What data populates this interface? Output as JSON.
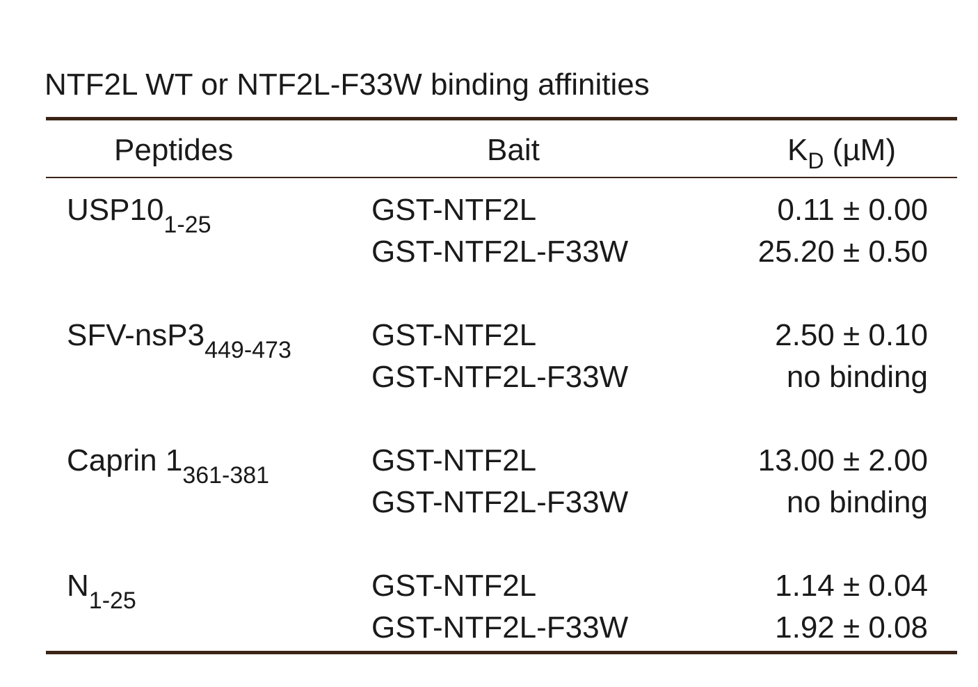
{
  "title": "NTF2L WT or NTF2L-F33W binding affinities",
  "headers": {
    "peptides": "Peptides",
    "bait": "Bait",
    "kd_main": "K",
    "kd_sub": "D",
    "kd_unit": " (µM)"
  },
  "rows": [
    {
      "peptide": "USP10",
      "peptide_sub": "1-25",
      "bait_1": "GST-NTF2L",
      "kd_1": "0.11 ± 0.00",
      "bait_2": "GST-NTF2L-F33W",
      "kd_2": "25.20 ± 0.50"
    },
    {
      "peptide": "SFV-nsP3",
      "peptide_sub": "449-473",
      "bait_1": "GST-NTF2L",
      "kd_1": "2.50 ± 0.10",
      "bait_2": "GST-NTF2L-F33W",
      "kd_2": "no binding"
    },
    {
      "peptide": "Caprin 1",
      "peptide_sub": "361-381",
      "bait_1": "GST-NTF2L",
      "kd_1": "13.00 ± 2.00",
      "bait_2": "GST-NTF2L-F33W",
      "kd_2": "no binding"
    },
    {
      "peptide": "N",
      "peptide_sub": "1-25",
      "bait_1": "GST-NTF2L",
      "kd_1": "1.14 ± 0.04",
      "bait_2": "GST-NTF2L-F33W",
      "kd_2": "1.92 ± 0.08"
    }
  ]
}
